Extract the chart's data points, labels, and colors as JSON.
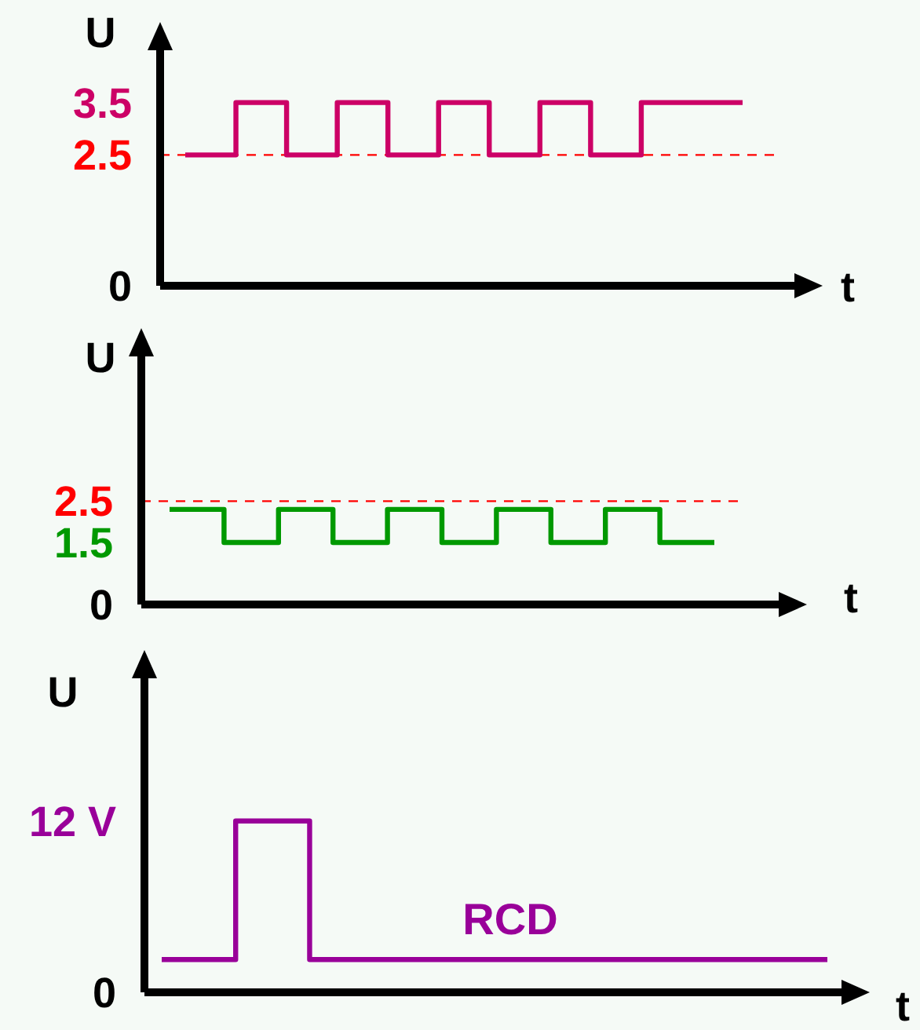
{
  "chart_data": [
    {
      "type": "step",
      "xlabel": "t",
      "ylabel": "U",
      "categories": [
        null,
        null,
        null,
        null,
        null,
        null,
        null,
        null,
        null,
        null,
        null,
        null
      ],
      "series": [
        {
          "color": "#cc0066",
          "values": [
            2.5,
            3.5,
            2.5,
            3.5,
            2.5,
            3.5,
            2.5,
            3.5,
            2.5,
            3.5,
            3.5,
            3.5
          ]
        }
      ],
      "ylim": [
        0,
        4.5
      ],
      "yticks": [
        0,
        2.5,
        3.5
      ],
      "tick_labels": "y",
      "ref_lines": [
        {
          "axis": "y",
          "value": 2.5,
          "color": "#ff0000",
          "line_style": "dashed"
        }
      ]
    },
    {
      "type": "step",
      "xlabel": "t",
      "ylabel": "U",
      "categories": [
        null,
        null,
        null,
        null,
        null,
        null,
        null,
        null,
        null,
        null,
        null
      ],
      "series": [
        {
          "color": "#009900",
          "values": [
            2.3,
            1.5,
            2.3,
            1.5,
            2.3,
            1.5,
            2.3,
            1.5,
            2.3,
            1.5,
            1.5
          ]
        }
      ],
      "ylim": [
        0,
        6
      ],
      "yticks": [
        0,
        1.5,
        2.5
      ],
      "tick_labels": "y",
      "ref_lines": [
        {
          "axis": "y",
          "value": 2.5,
          "color": "#ff0000",
          "line_style": "dashed"
        }
      ]
    },
    {
      "type": "step",
      "xlabel": "t",
      "ylabel": "U",
      "categories": [
        null,
        null,
        null,
        null,
        null,
        null,
        null,
        null,
        null,
        null
      ],
      "series": [
        {
          "color": "#990099",
          "values": [
            2.3,
            12,
            2.3,
            2.3,
            2.3,
            2.3,
            2.3,
            2.3,
            2.3,
            2.3
          ]
        }
      ],
      "ylim": [
        0,
        22
      ],
      "yticks": [
        0,
        {
          "value": 12,
          "label": "12 V"
        }
      ],
      "tick_labels": "y",
      "annotations": [
        "RCD"
      ]
    }
  ]
}
